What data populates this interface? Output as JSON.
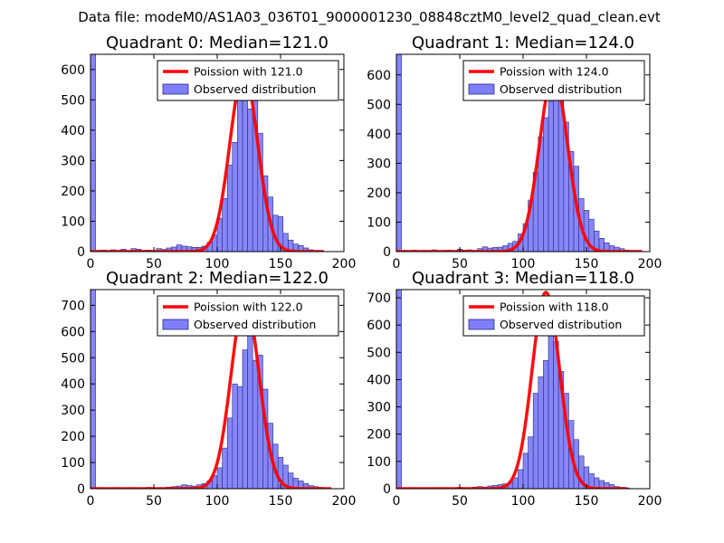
{
  "figure": {
    "title": "Data file: modeM0/AS1A03_036T01_9000001230_08848cztM0_level2_quad_clean.evt"
  },
  "colors": {
    "bar_fill": "#7f7ff7",
    "bar_stroke": "#2a2a8a",
    "poisson_line": "#ff0000",
    "legend_border": "#000000"
  },
  "chart_data": [
    {
      "type": "bar",
      "title": "Quadrant 0: Median=121.0",
      "median": 121.0,
      "xlim": [
        0,
        200
      ],
      "ylim": [
        0,
        650
      ],
      "xticks": [
        0,
        50,
        100,
        150,
        200
      ],
      "yticks": [
        0,
        100,
        200,
        300,
        400,
        500,
        600
      ],
      "bin_width": 4,
      "bins": [
        [
          0,
          650
        ],
        [
          4,
          4
        ],
        [
          8,
          5
        ],
        [
          12,
          3
        ],
        [
          16,
          6
        ],
        [
          20,
          4
        ],
        [
          24,
          8
        ],
        [
          28,
          3
        ],
        [
          32,
          10
        ],
        [
          36,
          8
        ],
        [
          40,
          4
        ],
        [
          44,
          5
        ],
        [
          48,
          3
        ],
        [
          52,
          10
        ],
        [
          56,
          7
        ],
        [
          60,
          12
        ],
        [
          64,
          15
        ],
        [
          68,
          22
        ],
        [
          72,
          18
        ],
        [
          76,
          16
        ],
        [
          80,
          14
        ],
        [
          84,
          14
        ],
        [
          88,
          18
        ],
        [
          92,
          30
        ],
        [
          96,
          55
        ],
        [
          100,
          110
        ],
        [
          104,
          175
        ],
        [
          108,
          285
        ],
        [
          112,
          360
        ],
        [
          116,
          510
        ],
        [
          120,
          590
        ],
        [
          124,
          470
        ],
        [
          128,
          515
        ],
        [
          132,
          390
        ],
        [
          136,
          250
        ],
        [
          140,
          180
        ],
        [
          144,
          120
        ],
        [
          148,
          115
        ],
        [
          152,
          60
        ],
        [
          156,
          38
        ],
        [
          160,
          25
        ],
        [
          164,
          20
        ],
        [
          168,
          12
        ],
        [
          172,
          6
        ],
        [
          176,
          3
        ],
        [
          180,
          2
        ]
      ],
      "poisson": {
        "label": "Poission with 121.0",
        "mean": 121.0,
        "peak": 590,
        "x_range": [
          0,
          184
        ]
      },
      "legend": {
        "line_label": "Poission with 121.0",
        "bar_label": "Observed distribution",
        "loc": "upper right"
      }
    },
    {
      "type": "bar",
      "title": "Quadrant 1: Median=124.0",
      "median": 124.0,
      "xlim": [
        0,
        200
      ],
      "ylim": [
        0,
        670
      ],
      "xticks": [
        0,
        50,
        100,
        150,
        200
      ],
      "yticks": [
        0,
        100,
        200,
        300,
        400,
        500,
        600
      ],
      "bin_width": 4,
      "bins": [
        [
          0,
          670
        ],
        [
          4,
          4
        ],
        [
          8,
          3
        ],
        [
          12,
          5
        ],
        [
          16,
          2
        ],
        [
          20,
          4
        ],
        [
          24,
          3
        ],
        [
          28,
          6
        ],
        [
          32,
          3
        ],
        [
          36,
          4
        ],
        [
          40,
          5
        ],
        [
          44,
          3
        ],
        [
          48,
          8
        ],
        [
          52,
          5
        ],
        [
          56,
          6
        ],
        [
          60,
          4
        ],
        [
          64,
          10
        ],
        [
          68,
          16
        ],
        [
          72,
          12
        ],
        [
          76,
          14
        ],
        [
          80,
          15
        ],
        [
          84,
          20
        ],
        [
          88,
          28
        ],
        [
          92,
          35
        ],
        [
          96,
          60
        ],
        [
          100,
          95
        ],
        [
          104,
          175
        ],
        [
          108,
          270
        ],
        [
          112,
          390
        ],
        [
          116,
          455
        ],
        [
          120,
          510
        ],
        [
          124,
          640
        ],
        [
          128,
          545
        ],
        [
          132,
          440
        ],
        [
          136,
          340
        ],
        [
          140,
          290
        ],
        [
          144,
          180
        ],
        [
          148,
          140
        ],
        [
          152,
          110
        ],
        [
          156,
          70
        ],
        [
          160,
          45
        ],
        [
          164,
          30
        ],
        [
          168,
          20
        ],
        [
          172,
          15
        ],
        [
          176,
          10
        ],
        [
          180,
          5
        ],
        [
          184,
          3
        ],
        [
          188,
          2
        ]
      ],
      "poisson": {
        "label": "Poission with 124.0",
        "mean": 124.0,
        "peak": 600,
        "x_range": [
          0,
          194
        ]
      },
      "legend": {
        "line_label": "Poission with 124.0",
        "bar_label": "Observed distribution",
        "loc": "upper right"
      }
    },
    {
      "type": "bar",
      "title": "Quadrant 2: Median=122.0",
      "median": 122.0,
      "xlim": [
        0,
        200
      ],
      "ylim": [
        0,
        760
      ],
      "xticks": [
        0,
        50,
        100,
        150,
        200
      ],
      "yticks": [
        0,
        100,
        200,
        300,
        400,
        500,
        600,
        700
      ],
      "bin_width": 4,
      "bins": [
        [
          0,
          760
        ],
        [
          4,
          4
        ],
        [
          8,
          3
        ],
        [
          12,
          2
        ],
        [
          16,
          4
        ],
        [
          20,
          3
        ],
        [
          24,
          2
        ],
        [
          28,
          3
        ],
        [
          32,
          4
        ],
        [
          36,
          2
        ],
        [
          40,
          3
        ],
        [
          44,
          5
        ],
        [
          48,
          2
        ],
        [
          52,
          4
        ],
        [
          56,
          3
        ],
        [
          60,
          6
        ],
        [
          64,
          8
        ],
        [
          68,
          10
        ],
        [
          72,
          15
        ],
        [
          76,
          12
        ],
        [
          80,
          10
        ],
        [
          84,
          15
        ],
        [
          88,
          20
        ],
        [
          92,
          30
        ],
        [
          96,
          50
        ],
        [
          100,
          80
        ],
        [
          104,
          155
        ],
        [
          108,
          270
        ],
        [
          112,
          400
        ],
        [
          116,
          390
        ],
        [
          120,
          530
        ],
        [
          124,
          620
        ],
        [
          128,
          490
        ],
        [
          132,
          510
        ],
        [
          136,
          380
        ],
        [
          140,
          250
        ],
        [
          144,
          170
        ],
        [
          148,
          120
        ],
        [
          152,
          90
        ],
        [
          156,
          60
        ],
        [
          160,
          40
        ],
        [
          164,
          30
        ],
        [
          168,
          20
        ],
        [
          172,
          12
        ],
        [
          176,
          8
        ],
        [
          180,
          5
        ],
        [
          184,
          2
        ]
      ],
      "poisson": {
        "label": "Poission with 122.0",
        "mean": 122.0,
        "peak": 720,
        "x_range": [
          0,
          190
        ]
      },
      "legend": {
        "line_label": "Poission with 122.0",
        "bar_label": "Observed distribution",
        "loc": "upper right"
      }
    },
    {
      "type": "bar",
      "title": "Quadrant 3: Median=118.0",
      "median": 118.0,
      "xlim": [
        0,
        200
      ],
      "ylim": [
        0,
        730
      ],
      "xticks": [
        0,
        50,
        100,
        150,
        200
      ],
      "yticks": [
        0,
        100,
        200,
        300,
        400,
        500,
        600,
        700
      ],
      "bin_width": 4,
      "bins": [
        [
          0,
          730
        ],
        [
          4,
          3
        ],
        [
          8,
          2
        ],
        [
          12,
          4
        ],
        [
          16,
          3
        ],
        [
          20,
          2
        ],
        [
          24,
          3
        ],
        [
          28,
          2
        ],
        [
          32,
          4
        ],
        [
          36,
          3
        ],
        [
          40,
          2
        ],
        [
          44,
          3
        ],
        [
          48,
          5
        ],
        [
          52,
          3
        ],
        [
          56,
          4
        ],
        [
          60,
          6
        ],
        [
          64,
          8
        ],
        [
          68,
          6
        ],
        [
          72,
          10
        ],
        [
          76,
          12
        ],
        [
          80,
          15
        ],
        [
          84,
          18
        ],
        [
          88,
          22
        ],
        [
          92,
          40
        ],
        [
          96,
          70
        ],
        [
          100,
          130
        ],
        [
          104,
          190
        ],
        [
          108,
          350
        ],
        [
          112,
          410
        ],
        [
          116,
          470
        ],
        [
          120,
          655
        ],
        [
          124,
          540
        ],
        [
          128,
          430
        ],
        [
          132,
          350
        ],
        [
          136,
          250
        ],
        [
          140,
          180
        ],
        [
          144,
          120
        ],
        [
          148,
          80
        ],
        [
          152,
          55
        ],
        [
          156,
          40
        ],
        [
          160,
          30
        ],
        [
          164,
          22
        ],
        [
          168,
          15
        ],
        [
          172,
          8
        ],
        [
          176,
          5
        ],
        [
          180,
          3
        ]
      ],
      "poisson": {
        "label": "Poission with 118.0",
        "mean": 118.0,
        "peak": 720,
        "x_range": [
          0,
          182
        ]
      },
      "legend": {
        "line_label": "Poission with 118.0",
        "bar_label": "Observed distribution",
        "loc": "upper right"
      }
    }
  ]
}
